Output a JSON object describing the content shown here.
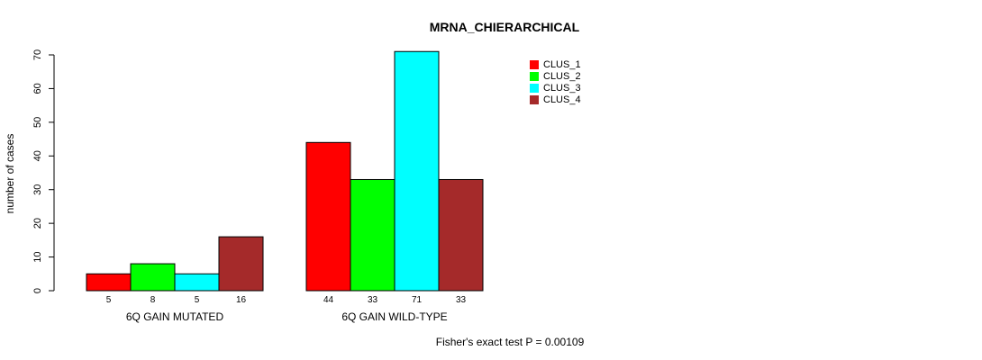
{
  "chart_data": {
    "type": "bar",
    "title": "MRNA_CHIERARCHICAL",
    "ylabel": "number of cases",
    "xlabel": "",
    "ylim": [
      0,
      70
    ],
    "yticks": [
      0,
      10,
      20,
      30,
      40,
      50,
      60,
      70
    ],
    "categories": [
      "6Q GAIN MUTATED",
      "6Q GAIN WILD-TYPE"
    ],
    "series": [
      {
        "name": "CLUS_1",
        "color": "#ff0000",
        "values": [
          5,
          44
        ]
      },
      {
        "name": "CLUS_2",
        "color": "#00ff00",
        "values": [
          8,
          33
        ]
      },
      {
        "name": "CLUS_3",
        "color": "#00ffff",
        "values": [
          5,
          71
        ]
      },
      {
        "name": "CLUS_4",
        "color": "#a52a2a",
        "values": [
          16,
          33
        ]
      }
    ],
    "legend_position": "top-right",
    "grid": false,
    "footnote": "Fisher's exact test P = 0.00109"
  }
}
